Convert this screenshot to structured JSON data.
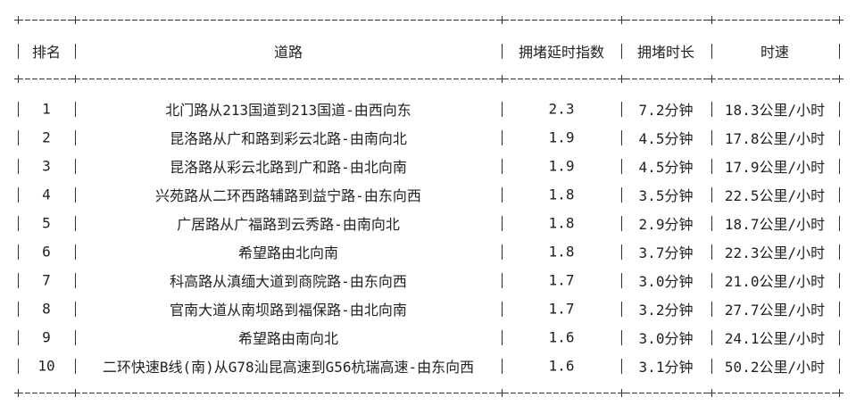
{
  "table": {
    "headers": [
      "排名",
      "道路",
      "拥堵延时指数",
      "拥堵时长",
      "时速"
    ],
    "rows": [
      [
        "1",
        "北门路从213国道到213国道-由西向东",
        "2.3",
        "7.2分钟",
        "18.3公里/小时"
      ],
      [
        "2",
        "昆洛路从广和路到彩云北路-由南向北",
        "1.9",
        "4.5分钟",
        "17.8公里/小时"
      ],
      [
        "3",
        "昆洛路从彩云北路到广和路-由北向南",
        "1.9",
        "4.5分钟",
        "17.9公里/小时"
      ],
      [
        "4",
        "兴苑路从二环西路辅路到益宁路-由东向西",
        "1.8",
        "3.5分钟",
        "22.5公里/小时"
      ],
      [
        "5",
        "广居路从广福路到云秀路-由南向北",
        "1.8",
        "2.9分钟",
        "18.7公里/小时"
      ],
      [
        "6",
        "希望路由北向南",
        "1.8",
        "3.7分钟",
        "22.3公里/小时"
      ],
      [
        "7",
        "科高路从滇缅大道到商院路-由东向西",
        "1.7",
        "3.0分钟",
        "21.0公里/小时"
      ],
      [
        "8",
        "官南大道从南坝路到福保路-由北向南",
        "1.7",
        "3.2分钟",
        "27.7公里/小时"
      ],
      [
        "9",
        "希望路由南向北",
        "1.6",
        "3.0分钟",
        "24.1公里/小时"
      ],
      [
        "10",
        "二环快速B线(南)从G78汕昆高速到G56杭瑞高速-由东向西",
        "1.6",
        "3.1分钟",
        "50.2公里/小时"
      ]
    ]
  }
}
